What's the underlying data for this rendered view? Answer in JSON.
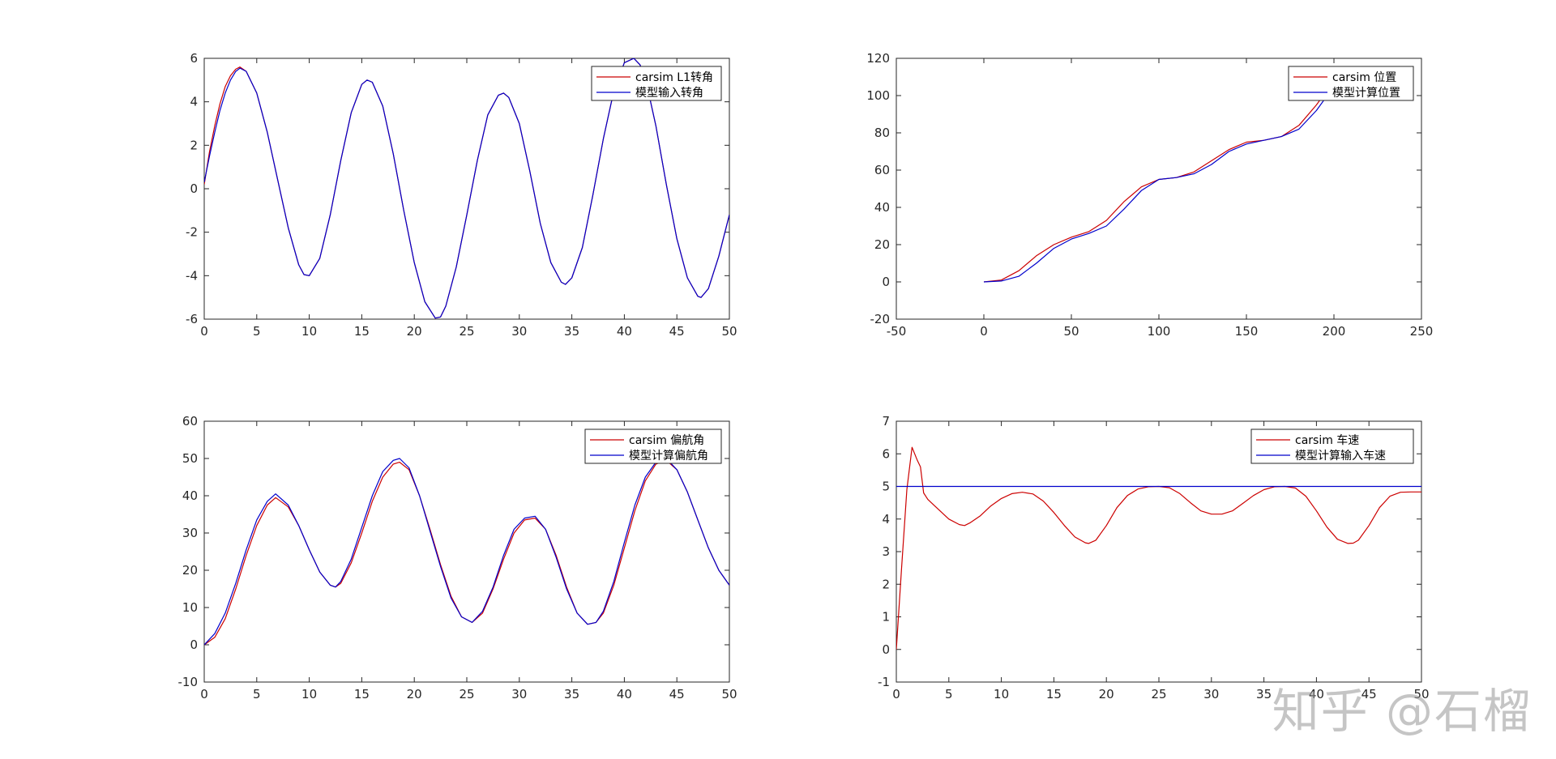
{
  "colors": {
    "carsim": "#cc0000",
    "model": "#0000cc",
    "axis": "#262626"
  },
  "watermark": "知乎 @石榴",
  "chart_data": [
    {
      "type": "line",
      "title": "",
      "xlabel": "",
      "ylabel": "",
      "xlim": [
        0,
        50
      ],
      "ylim": [
        -6,
        6
      ],
      "xticks": [
        0,
        5,
        10,
        15,
        20,
        25,
        30,
        35,
        40,
        45,
        50
      ],
      "yticks": [
        -6,
        -4,
        -2,
        0,
        2,
        4,
        6
      ],
      "grid": false,
      "legend": "top-right",
      "series": [
        {
          "name": "carsim L1转角",
          "color": "#cc0000",
          "x": [
            0,
            0.5,
            1,
            1.5,
            2,
            2.5,
            3,
            3.4,
            4,
            5,
            6,
            7,
            8,
            9,
            9.5,
            10,
            11,
            12,
            13,
            14,
            15,
            15.5,
            16,
            17,
            18,
            19,
            20,
            21,
            22,
            22.5,
            23,
            24,
            25,
            26,
            27,
            28,
            28.5,
            29,
            30,
            31,
            32,
            33,
            34,
            34.4,
            35,
            36,
            37,
            38,
            39,
            40,
            40.9,
            41.5,
            42,
            43,
            44,
            45,
            46,
            47,
            47.3,
            48,
            49,
            50
          ],
          "y": [
            0.2,
            1.7,
            2.9,
            3.9,
            4.7,
            5.2,
            5.5,
            5.6,
            5.4,
            4.4,
            2.6,
            0.4,
            -1.8,
            -3.5,
            -3.95,
            -4.0,
            -3.2,
            -1.2,
            1.3,
            3.5,
            4.8,
            5.0,
            4.9,
            3.8,
            1.6,
            -1.0,
            -3.4,
            -5.2,
            -5.95,
            -5.9,
            -5.4,
            -3.6,
            -1.2,
            1.3,
            3.4,
            4.3,
            4.4,
            4.2,
            3.0,
            0.8,
            -1.6,
            -3.4,
            -4.3,
            -4.4,
            -4.1,
            -2.7,
            -0.3,
            2.3,
            4.5,
            5.8,
            6.0,
            5.7,
            5.1,
            2.9,
            0.2,
            -2.3,
            -4.1,
            -4.95,
            -5.0,
            -4.6,
            -3.1,
            -1.2
          ]
        },
        {
          "name": "模型输入转角",
          "color": "#0000cc",
          "x": [
            0,
            0.5,
            1,
            1.5,
            2,
            2.5,
            3,
            3.4,
            4,
            5,
            6,
            7,
            8,
            9,
            9.5,
            10,
            11,
            12,
            13,
            14,
            15,
            15.5,
            16,
            17,
            18,
            19,
            20,
            21,
            22,
            22.5,
            23,
            24,
            25,
            26,
            27,
            28,
            28.5,
            29,
            30,
            31,
            32,
            33,
            34,
            34.4,
            35,
            36,
            37,
            38,
            39,
            40,
            40.9,
            41.5,
            42,
            43,
            44,
            45,
            46,
            47,
            47.3,
            48,
            49,
            50
          ],
          "y": [
            0.3,
            1.5,
            2.6,
            3.6,
            4.4,
            5.0,
            5.4,
            5.55,
            5.4,
            4.4,
            2.6,
            0.4,
            -1.8,
            -3.5,
            -3.95,
            -4.0,
            -3.2,
            -1.2,
            1.3,
            3.5,
            4.8,
            5.0,
            4.9,
            3.8,
            1.6,
            -1.0,
            -3.4,
            -5.2,
            -5.95,
            -5.9,
            -5.4,
            -3.6,
            -1.2,
            1.3,
            3.4,
            4.3,
            4.4,
            4.2,
            3.0,
            0.8,
            -1.6,
            -3.4,
            -4.3,
            -4.4,
            -4.1,
            -2.7,
            -0.3,
            2.3,
            4.5,
            5.8,
            6.0,
            5.7,
            5.1,
            2.9,
            0.2,
            -2.3,
            -4.1,
            -4.95,
            -5.0,
            -4.6,
            -3.1,
            -1.2
          ]
        }
      ]
    },
    {
      "type": "line",
      "title": "",
      "xlabel": "",
      "ylabel": "",
      "xlim": [
        -50,
        250
      ],
      "ylim": [
        -20,
        120
      ],
      "xticks": [
        -50,
        0,
        50,
        100,
        150,
        200,
        250
      ],
      "yticks": [
        -20,
        0,
        20,
        40,
        60,
        80,
        100,
        120
      ],
      "grid": false,
      "legend": "top-right",
      "series": [
        {
          "name": "carsim 位置",
          "color": "#cc0000",
          "x": [
            0,
            10,
            20,
            30,
            40,
            50,
            60,
            70,
            80,
            90,
            100,
            110,
            120,
            130,
            140,
            150,
            160,
            170,
            180,
            190,
            200
          ],
          "y": [
            0,
            1,
            6,
            14,
            20,
            24,
            27,
            33,
            43,
            51,
            55,
            56,
            59,
            65,
            71,
            75,
            76,
            78,
            84,
            95,
            108
          ]
        },
        {
          "name": "模型计算位置",
          "color": "#0000cc",
          "x": [
            0,
            10,
            20,
            30,
            40,
            50,
            60,
            70,
            80,
            90,
            100,
            110,
            120,
            130,
            140,
            150,
            160,
            170,
            180,
            190,
            200
          ],
          "y": [
            0,
            0.5,
            3,
            10,
            18,
            23,
            26,
            30,
            39,
            49,
            55,
            56,
            58,
            63,
            70,
            74,
            76,
            78,
            82,
            92,
            105
          ]
        }
      ]
    },
    {
      "type": "line",
      "title": "",
      "xlabel": "",
      "ylabel": "",
      "xlim": [
        0,
        50
      ],
      "ylim": [
        -10,
        60
      ],
      "xticks": [
        0,
        5,
        10,
        15,
        20,
        25,
        30,
        35,
        40,
        45,
        50
      ],
      "yticks": [
        -10,
        0,
        10,
        20,
        30,
        40,
        50,
        60
      ],
      "grid": false,
      "legend": "top-right",
      "series": [
        {
          "name": "carsim 偏航角",
          "color": "#cc0000",
          "x": [
            0,
            1,
            2,
            3,
            4,
            5,
            6,
            6.8,
            8,
            9,
            10,
            11,
            12,
            12.5,
            13,
            14,
            15,
            16,
            17,
            18,
            18.6,
            19.5,
            20.5,
            21.5,
            22.5,
            23.5,
            24.5,
            25.5,
            26.5,
            27.5,
            28.5,
            29.5,
            30.5,
            31.5,
            32.5,
            33.5,
            34.5,
            35.5,
            36.5,
            37.3,
            38,
            39,
            40,
            41,
            42,
            43,
            44,
            45,
            46,
            47,
            48,
            49,
            50
          ],
          "y": [
            0,
            2,
            7,
            15,
            24,
            32,
            37.5,
            39.5,
            37,
            32,
            25.5,
            19.5,
            16,
            15.5,
            16.5,
            22,
            30,
            38.5,
            45,
            48.5,
            49,
            47,
            40,
            31,
            21.5,
            13,
            7.5,
            6,
            8.5,
            15,
            23,
            30,
            33.5,
            34,
            31,
            24,
            15.5,
            8.5,
            5.5,
            6,
            8.5,
            16,
            26,
            36,
            44,
            48.5,
            49.5,
            47,
            41,
            33.5,
            26,
            20,
            16
          ]
        },
        {
          "name": "模型计算偏航角",
          "color": "#0000cc",
          "x": [
            0,
            1,
            2,
            3,
            4,
            5,
            6,
            6.8,
            8,
            9,
            10,
            11,
            12,
            12.5,
            13,
            14,
            15,
            16,
            17,
            18,
            18.6,
            19.5,
            20.5,
            21.5,
            22.5,
            23.5,
            24.5,
            25.5,
            26.5,
            27.5,
            28.5,
            29.5,
            30.5,
            31.5,
            32.5,
            33.5,
            34.5,
            35.5,
            36.5,
            37.3,
            38,
            39,
            40,
            41,
            42,
            43,
            44,
            45,
            46,
            47,
            48,
            49,
            50
          ],
          "y": [
            0,
            3,
            8.5,
            16.5,
            25.5,
            33.5,
            38.5,
            40.5,
            37.5,
            32,
            25.5,
            19.5,
            16,
            15.5,
            17,
            23,
            31.5,
            40,
            46.5,
            49.5,
            50,
            47.5,
            40,
            30.5,
            21,
            12.5,
            7.5,
            6,
            9,
            15.5,
            24,
            31,
            34,
            34.5,
            31,
            23.5,
            15,
            8.5,
            5.5,
            6,
            9,
            17,
            27.5,
            37.5,
            45,
            49,
            50,
            47,
            41,
            33.5,
            26,
            20,
            16
          ]
        }
      ]
    },
    {
      "type": "line",
      "title": "",
      "xlabel": "",
      "ylabel": "",
      "xlim": [
        0,
        50
      ],
      "ylim": [
        -1,
        7
      ],
      "xticks": [
        0,
        5,
        10,
        15,
        20,
        25,
        30,
        35,
        40,
        45,
        50
      ],
      "yticks": [
        -1,
        0,
        1,
        2,
        3,
        4,
        5,
        6,
        7
      ],
      "grid": false,
      "legend": "top-right",
      "series": [
        {
          "name": "carsim 车速",
          "color": "#cc0000",
          "x": [
            0,
            0.5,
            1,
            1.5,
            2,
            2.3,
            2.6,
            3,
            4,
            5,
            6,
            6.5,
            7,
            8,
            9,
            10,
            11,
            12,
            13,
            14,
            15,
            16,
            17,
            18,
            18.3,
            19,
            20,
            21,
            22,
            23,
            24,
            25,
            26,
            27,
            28,
            29,
            30,
            31,
            32,
            33,
            34,
            35,
            36,
            37,
            38,
            39,
            40,
            41,
            42,
            43,
            43.5,
            44,
            45,
            46,
            47,
            48,
            49,
            50
          ],
          "y": [
            0,
            2.5,
            4.9,
            6.2,
            5.8,
            5.6,
            4.8,
            4.6,
            4.3,
            4.0,
            3.83,
            3.8,
            3.88,
            4.1,
            4.4,
            4.63,
            4.78,
            4.82,
            4.77,
            4.55,
            4.2,
            3.8,
            3.45,
            3.27,
            3.25,
            3.35,
            3.8,
            4.35,
            4.72,
            4.92,
            4.99,
            5.0,
            4.96,
            4.78,
            4.5,
            4.25,
            4.15,
            4.15,
            4.25,
            4.48,
            4.72,
            4.9,
            4.99,
            5.0,
            4.95,
            4.7,
            4.25,
            3.75,
            3.38,
            3.25,
            3.26,
            3.35,
            3.8,
            4.35,
            4.7,
            4.82,
            4.83,
            4.83
          ]
        },
        {
          "name": "模型计算输入车速",
          "color": "#0000cc",
          "x": [
            0,
            50
          ],
          "y": [
            5,
            5
          ]
        }
      ]
    }
  ]
}
